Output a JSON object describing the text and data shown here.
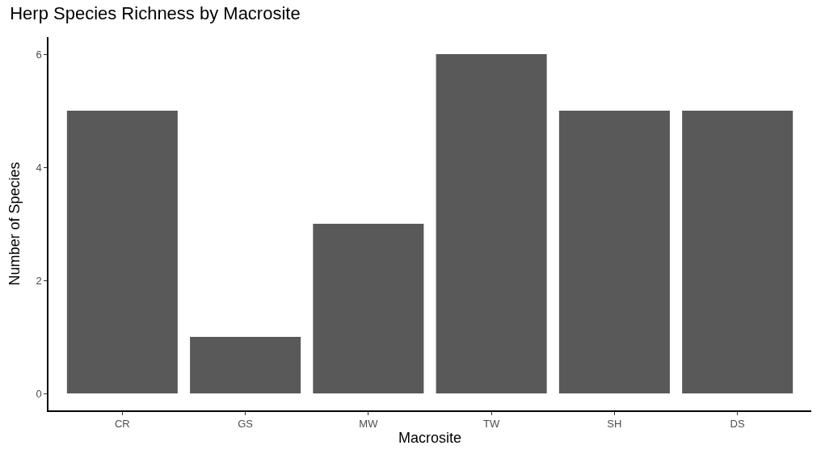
{
  "chart_data": {
    "type": "bar",
    "title": "Herp Species Richness by Macrosite",
    "xlabel": "Macrosite",
    "ylabel": "Number of Species",
    "categories": [
      "CR",
      "GS",
      "MW",
      "TW",
      "SH",
      "DS"
    ],
    "values": [
      5,
      1,
      3,
      6,
      5,
      5
    ],
    "color": "#595959",
    "ylim": [
      -0.3,
      6.3
    ],
    "yticks": [
      0,
      2,
      4,
      6
    ]
  }
}
